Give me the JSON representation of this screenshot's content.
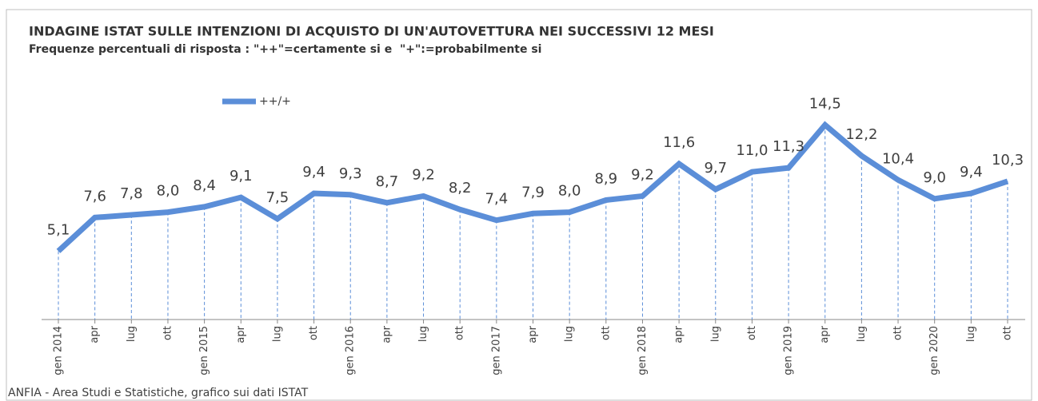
{
  "chart_data": {
    "type": "line",
    "title": "INDAGINE ISTAT SULLE INTENZIONI DI ACQUISTO DI UN'AUTOVETTURA NEI SUCCESSIVI 12 MESI",
    "subtitle": "Frequenze percentuali di risposta : \"++\"=certamente si e  \"+\":=probabilmente si",
    "source": "ANFIA - Area Studi e Statistiche, grafico sui dati ISTAT",
    "categories": [
      "gen 2014",
      "apr",
      "lug",
      "ott",
      "gen 2015",
      "apr",
      "lug",
      "ott",
      "gen 2016",
      "apr",
      "lug",
      "ott",
      "gen 2017",
      "apr",
      "lug",
      "ott",
      "gen 2018",
      "apr",
      "lug",
      "ott",
      "gen 2019",
      "apr",
      "lug",
      "ott",
      "gen 2020",
      "lug",
      "ott"
    ],
    "series": [
      {
        "name": "++/+",
        "color": "#5b8ed8",
        "values": [
          5.1,
          7.6,
          7.8,
          8.0,
          8.4,
          9.1,
          7.5,
          9.4,
          9.3,
          8.7,
          9.2,
          8.2,
          7.4,
          7.9,
          8.0,
          8.9,
          9.2,
          11.6,
          9.7,
          11.0,
          11.3,
          14.5,
          12.2,
          10.4,
          9.0,
          9.4,
          10.3
        ],
        "value_labels": [
          "5,1",
          "7,6",
          "7,8",
          "8,0",
          "8,4",
          "9,1",
          "7,5",
          "9,4",
          "9,3",
          "8,7",
          "9,2",
          "8,2",
          "7,4",
          "7,9",
          "8,0",
          "8,9",
          "9,2",
          "11,6",
          "9,7",
          "11,0",
          "11,3",
          "14,5",
          "12,2",
          "10,4",
          "9,0",
          "9,4",
          "10,3"
        ]
      }
    ],
    "ylim": [
      0,
      15
    ],
    "legend": "top-left"
  }
}
